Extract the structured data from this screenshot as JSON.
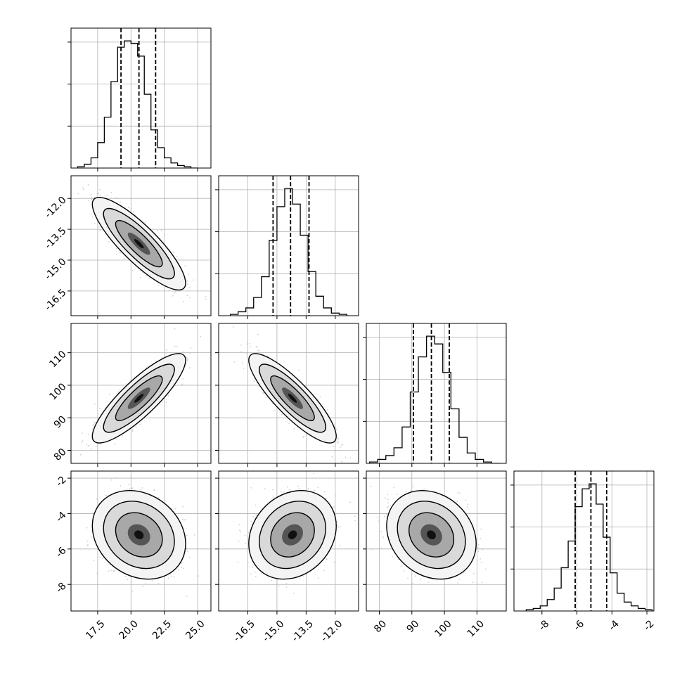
{
  "figure": {
    "type": "corner",
    "panel_grid": "4x4 lower-triangle"
  },
  "chart_data": [
    {
      "type": "histogram",
      "name": "hist-p1",
      "row": 0,
      "col": 0,
      "xlim": [
        15.5,
        26.0
      ],
      "grid": true,
      "quantiles": [
        19.25,
        20.6,
        21.85
      ],
      "bin_edges": [
        16.0,
        16.5,
        17.0,
        17.5,
        18.0,
        18.5,
        19.0,
        19.5,
        20.0,
        20.5,
        21.0,
        21.5,
        22.0,
        22.5,
        23.0,
        23.5,
        24.0,
        24.5,
        25.0
      ],
      "counts": [
        1,
        3,
        8,
        20,
        40,
        68,
        95,
        100,
        98,
        88,
        58,
        30,
        16,
        8,
        4,
        2,
        1,
        0
      ],
      "y_ticks_labeled": false
    },
    {
      "type": "scatter-density",
      "name": "p1-p2",
      "row": 1,
      "col": 0,
      "xlim": [
        15.5,
        26.0
      ],
      "ylim": [
        -17.7,
        -10.9
      ],
      "mean": [
        20.6,
        -14.2
      ],
      "sd": [
        1.4,
        0.9
      ],
      "corr": -0.85,
      "grid": true
    },
    {
      "type": "histogram",
      "name": "hist-p2",
      "row": 1,
      "col": 1,
      "xlim": [
        -18.0,
        -10.8
      ],
      "grid": true,
      "quantiles": [
        -15.2,
        -14.3,
        -13.35
      ],
      "bin_edges": [
        -17.4,
        -17.0,
        -16.6,
        -16.2,
        -15.8,
        -15.4,
        -15.0,
        -14.6,
        -14.2,
        -13.8,
        -13.4,
        -13.0,
        -12.6,
        -12.2,
        -11.8,
        -11.4
      ],
      "counts": [
        1,
        3,
        6,
        14,
        30,
        58,
        84,
        98,
        86,
        62,
        34,
        15,
        6,
        2,
        1
      ],
      "y_ticks_labeled": false
    },
    {
      "type": "scatter-density",
      "name": "p1-p3",
      "row": 2,
      "col": 0,
      "xlim": [
        15.5,
        26.0
      ],
      "ylim": [
        76,
        119
      ],
      "mean": [
        20.6,
        96.0
      ],
      "sd": [
        1.4,
        5.5
      ],
      "corr": 0.85,
      "grid": true
    },
    {
      "type": "scatter-density",
      "name": "p2-p3",
      "row": 2,
      "col": 1,
      "xlim": [
        -18.0,
        -10.8
      ],
      "ylim": [
        76,
        119
      ],
      "mean": [
        -14.2,
        96.0
      ],
      "sd": [
        0.9,
        5.5
      ],
      "corr": -0.85,
      "grid": true
    },
    {
      "type": "histogram",
      "name": "hist-p3",
      "row": 2,
      "col": 2,
      "xlim": [
        76,
        119
      ],
      "grid": true,
      "quantiles": [
        90.5,
        96.0,
        101.5
      ],
      "bin_edges": [
        77,
        79.5,
        82,
        84.5,
        87,
        89.5,
        92,
        94.5,
        97,
        99.5,
        102,
        104.5,
        107,
        109.5,
        112,
        114.5,
        117
      ],
      "counts": [
        1,
        3,
        6,
        12,
        28,
        55,
        82,
        98,
        92,
        70,
        42,
        20,
        8,
        3,
        1,
        0
      ],
      "y_ticks_labeled": false
    },
    {
      "type": "scatter-density",
      "name": "p1-p4",
      "row": 3,
      "col": 0,
      "xlim": [
        15.5,
        26.0
      ],
      "ylim": [
        -9.5,
        -1.6
      ],
      "mean": [
        20.6,
        -5.2
      ],
      "sd": [
        1.4,
        1.0
      ],
      "corr": -0.2,
      "grid": true
    },
    {
      "type": "scatter-density",
      "name": "p2-p4",
      "row": 3,
      "col": 1,
      "xlim": [
        -18.0,
        -10.8
      ],
      "ylim": [
        -9.5,
        -1.6
      ],
      "mean": [
        -14.2,
        -5.2
      ],
      "sd": [
        0.9,
        1.0
      ],
      "corr": 0.2,
      "grid": true
    },
    {
      "type": "scatter-density",
      "name": "p3-p4",
      "row": 3,
      "col": 2,
      "xlim": [
        76,
        119
      ],
      "ylim": [
        -9.5,
        -1.6
      ],
      "mean": [
        96.0,
        -5.2
      ],
      "sd": [
        5.5,
        1.0
      ],
      "corr": -0.2,
      "grid": true
    },
    {
      "type": "histogram",
      "name": "hist-p4",
      "row": 3,
      "col": 3,
      "xlim": [
        -9.6,
        -1.6
      ],
      "grid": true,
      "quantiles": [
        -6.1,
        -5.2,
        -4.3
      ],
      "bin_edges": [
        -8.9,
        -8.5,
        -8.1,
        -7.7,
        -7.3,
        -6.9,
        -6.5,
        -6.1,
        -5.7,
        -5.3,
        -4.9,
        -4.5,
        -4.1,
        -3.7,
        -3.3,
        -2.9,
        -2.5,
        -2.1,
        -1.7
      ],
      "counts": [
        1,
        2,
        4,
        9,
        18,
        34,
        55,
        82,
        96,
        100,
        84,
        58,
        30,
        14,
        7,
        4,
        2,
        1
      ],
      "y_ticks_labeled": false
    }
  ],
  "axes": {
    "x_tick_labels": [
      [
        "17.5",
        "20.0",
        "22.5",
        "25.0"
      ],
      [
        "-16.5",
        "-15.0",
        "-13.5",
        "-12.0"
      ],
      [
        "80",
        "90",
        "100",
        "110"
      ],
      [
        "-8",
        "-6",
        "-4",
        "-2"
      ]
    ],
    "x_tick_values": [
      [
        17.5,
        20.0,
        22.5,
        25.0
      ],
      [
        -16.5,
        -15.0,
        -13.5,
        -12.0
      ],
      [
        80,
        90,
        100,
        110
      ],
      [
        -8,
        -6,
        -4,
        -2
      ]
    ],
    "y_tick_labels": [
      [],
      [
        "-12.0",
        "-13.5",
        "-15.0",
        "-16.5"
      ],
      [
        "110",
        "100",
        "90",
        "80"
      ],
      [
        "-2",
        "-4",
        "-6",
        "-8"
      ]
    ],
    "y_tick_values": [
      [],
      [
        -12.0,
        -13.5,
        -15.0,
        -16.5
      ],
      [
        110,
        100,
        90,
        80
      ],
      [
        -2,
        -4,
        -6,
        -8
      ]
    ],
    "hist_y_tick_fractions": [
      0.3,
      0.6,
      0.9
    ]
  },
  "colors": {
    "line": "#000000",
    "grid": "#b0b0b0",
    "points": "#bdbdbd",
    "background": "#ffffff"
  }
}
